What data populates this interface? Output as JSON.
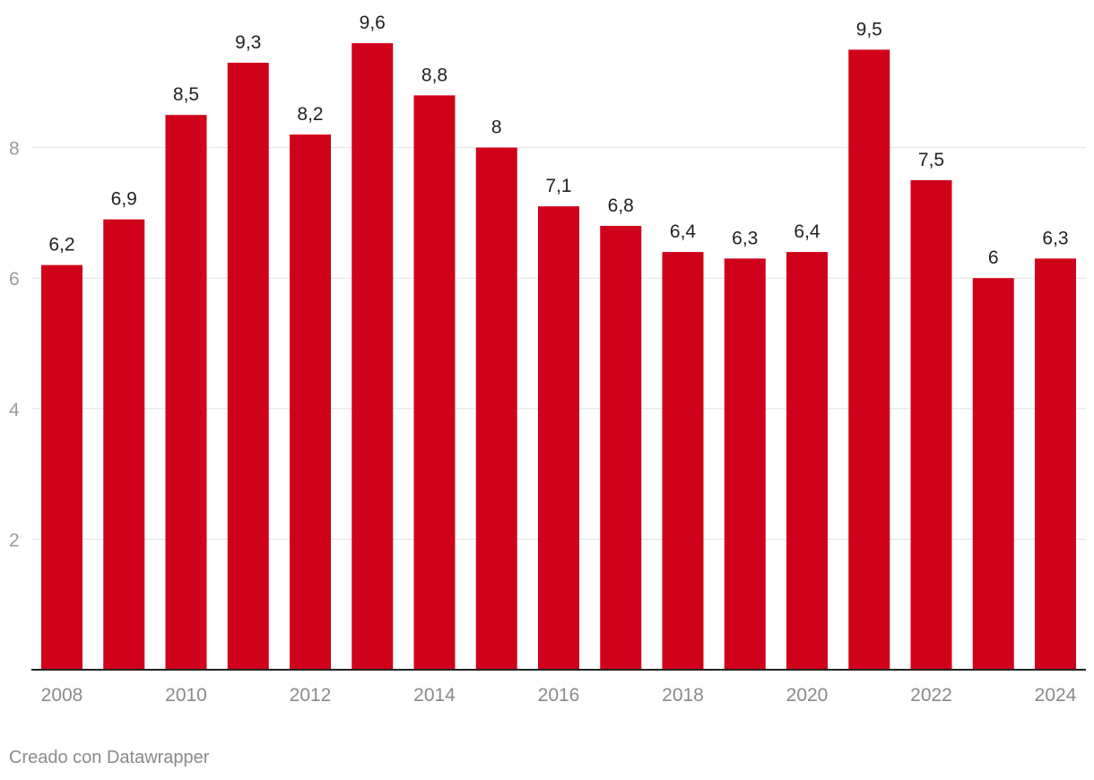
{
  "chart_data": {
    "type": "bar",
    "title": "",
    "xlabel": "",
    "ylabel": "",
    "categories": [
      "2008",
      "2009",
      "2010",
      "2011",
      "2012",
      "2013",
      "2014",
      "2015",
      "2016",
      "2017",
      "2018",
      "2019",
      "2020",
      "2021",
      "2022",
      "2023",
      "2024"
    ],
    "values": [
      6.2,
      6.9,
      8.5,
      9.3,
      8.2,
      9.6,
      8.8,
      8,
      7.1,
      6.8,
      6.4,
      6.3,
      6.4,
      9.5,
      7.5,
      6,
      6.3
    ],
    "value_labels": [
      "6,2",
      "6,9",
      "8,5",
      "9,3",
      "8,2",
      "9,6",
      "8,8",
      "8",
      "7,1",
      "6,8",
      "6,4",
      "6,3",
      "6,4",
      "9,5",
      "7,5",
      "6",
      "6,3"
    ],
    "x_tick_labels": [
      "2008",
      "2010",
      "2012",
      "2014",
      "2016",
      "2018",
      "2020",
      "2022",
      "2024"
    ],
    "y_ticks": [
      2,
      4,
      6,
      8
    ],
    "y_tick_labels": [
      "2",
      "4",
      "6",
      "8"
    ],
    "ylim": [
      0,
      10
    ],
    "grid": true,
    "bar_color": "#d0021b"
  },
  "footer": {
    "credit": "Creado con Datawrapper"
  }
}
